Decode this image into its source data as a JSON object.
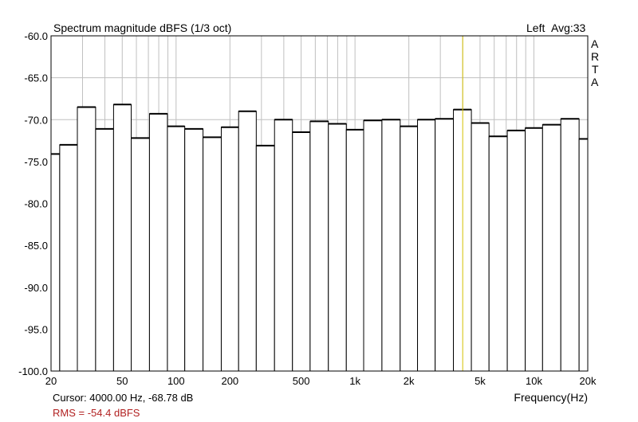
{
  "window": {
    "title": "Spectrum magnitude dBFS (1/3 oct)",
    "channel_label": "Left",
    "avg_label": "Avg:33",
    "brand_letters": [
      "A",
      "R",
      "T",
      "A"
    ]
  },
  "footer": {
    "cursor_label": "Cursor:",
    "cursor_value": "4000.00 Hz, -68.78 dB",
    "rms_label": "RMS =",
    "rms_value": "-54.4 dBFS"
  },
  "colors": {
    "bar_fill": "#ffffff",
    "bar_edge": "#000000",
    "grid": "#c0c0c0",
    "cursor": "#d4c000",
    "rms_text": "#b22222"
  },
  "chart_data": {
    "type": "bar",
    "title": "Spectrum magnitude dBFS (1/3 oct)",
    "xlabel": "Frequency(Hz)",
    "ylabel": "",
    "x_scale": "log",
    "xlim": [
      20,
      20000
    ],
    "ylim": [
      -100,
      -60
    ],
    "grid": true,
    "y_ticks": [
      -60,
      -65,
      -70,
      -75,
      -80,
      -85,
      -90,
      -95,
      -100
    ],
    "y_tick_labels": [
      "-60.0",
      "-65.0",
      "-70.0",
      "-75.0",
      "-80.0",
      "-85.0",
      "-90.0",
      "-95.0",
      "-100.0"
    ],
    "x_ticks": [
      20,
      50,
      100,
      200,
      500,
      1000,
      2000,
      5000,
      10000,
      20000
    ],
    "x_tick_labels": [
      "20",
      "50",
      "100",
      "200",
      "500",
      "1k",
      "2k",
      "5k",
      "10k",
      "20k"
    ],
    "cursor_x": 4000,
    "categories": [
      "20",
      "25",
      "31.5",
      "40",
      "50",
      "63",
      "80",
      "100",
      "125",
      "160",
      "200",
      "250",
      "315",
      "400",
      "500",
      "630",
      "800",
      "1000",
      "1250",
      "1600",
      "2000",
      "2500",
      "3150",
      "4000",
      "5000",
      "6300",
      "8000",
      "10000",
      "12500",
      "16000",
      "20000"
    ],
    "values": [
      -74.1,
      -73.0,
      -68.5,
      -71.1,
      -68.2,
      -72.2,
      -69.3,
      -70.8,
      -71.1,
      -72.1,
      -70.9,
      -69.0,
      -73.1,
      -70.0,
      -71.5,
      -70.2,
      -70.5,
      -71.2,
      -70.1,
      -70.0,
      -70.8,
      -70.0,
      -69.9,
      -68.8,
      -70.4,
      -72.0,
      -71.3,
      -71.0,
      -70.6,
      -69.9,
      -72.3
    ]
  }
}
